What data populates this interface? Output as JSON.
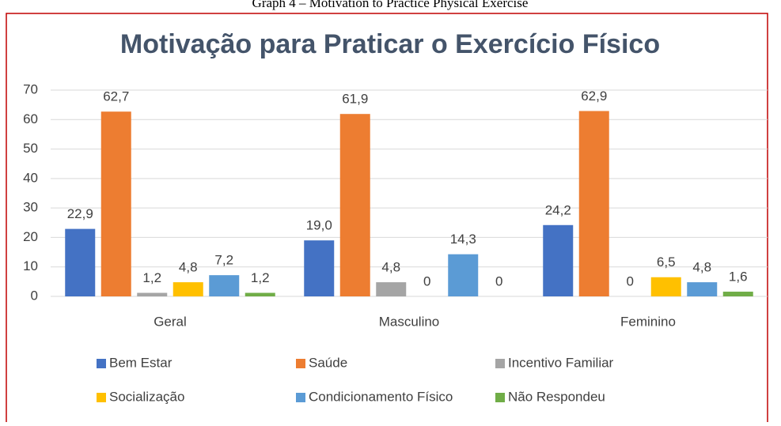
{
  "caption": "Graph 4 – Motivation to Practice Physical Exercise",
  "chart_data": {
    "type": "bar",
    "title": "Motivação para Praticar o Exercício Físico",
    "categories": [
      "Geral",
      "Masculino",
      "Feminino"
    ],
    "series": [
      {
        "name": "Bem Estar",
        "color": "#4472c4",
        "values": [
          22.9,
          19.0,
          24.2
        ],
        "value_labels": [
          "22,9",
          "19,0",
          "24,2"
        ]
      },
      {
        "name": "Saúde",
        "color": "#ed7d31",
        "values": [
          62.7,
          61.9,
          62.9
        ],
        "value_labels": [
          "62,7",
          "61,9",
          "62,9"
        ]
      },
      {
        "name": "Incentivo Familiar",
        "color": "#a5a5a5",
        "values": [
          1.2,
          4.8,
          0
        ],
        "value_labels": [
          "1,2",
          "4,8",
          "0"
        ]
      },
      {
        "name": "Socialização",
        "color": "#ffc000",
        "values": [
          4.8,
          0,
          6.5
        ],
        "value_labels": [
          "4,8",
          "0",
          "6,5"
        ]
      },
      {
        "name": "Condicionamento Físico",
        "color": "#5b9bd5",
        "values": [
          7.2,
          14.3,
          4.8
        ],
        "value_labels": [
          "7,2",
          "14,3",
          "4,8"
        ]
      },
      {
        "name": "Não Respondeu",
        "color": "#70ad47",
        "values": [
          1.2,
          0,
          1.6
        ],
        "value_labels": [
          "1,2",
          "0",
          "1,6"
        ]
      }
    ],
    "ylim": [
      0,
      70
    ],
    "yticks": [
      0,
      10,
      20,
      30,
      40,
      50,
      60,
      70
    ],
    "grid": true
  }
}
